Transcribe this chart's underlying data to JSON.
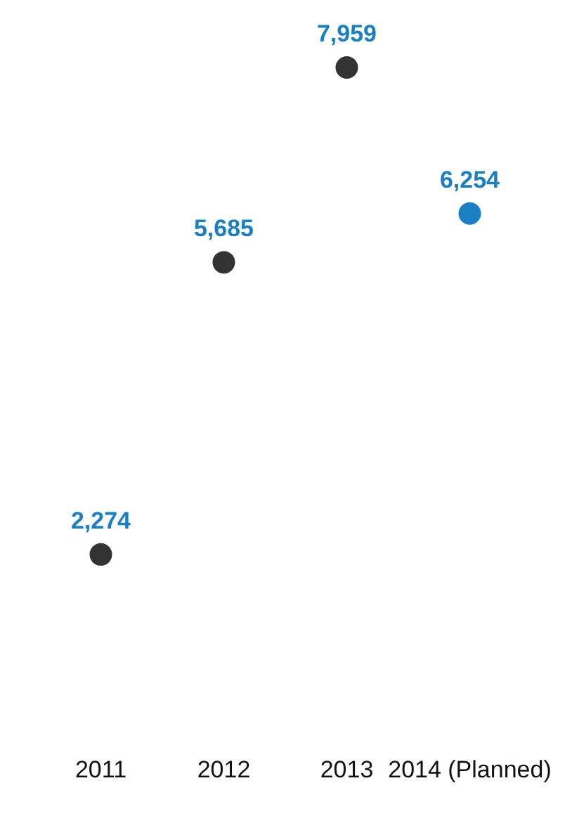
{
  "chart_data": {
    "type": "scatter",
    "categories": [
      "2011",
      "2012",
      "2013",
      "2014 (Planned)"
    ],
    "values": [
      2274,
      5685,
      7959,
      6254
    ],
    "colors": [
      "#333333",
      "#333333",
      "#333333",
      "#1a7fc4"
    ],
    "value_labels": [
      "2,274",
      "5,685",
      "7,959",
      "6,254"
    ],
    "tick_labels": "x",
    "marker": "circle"
  }
}
